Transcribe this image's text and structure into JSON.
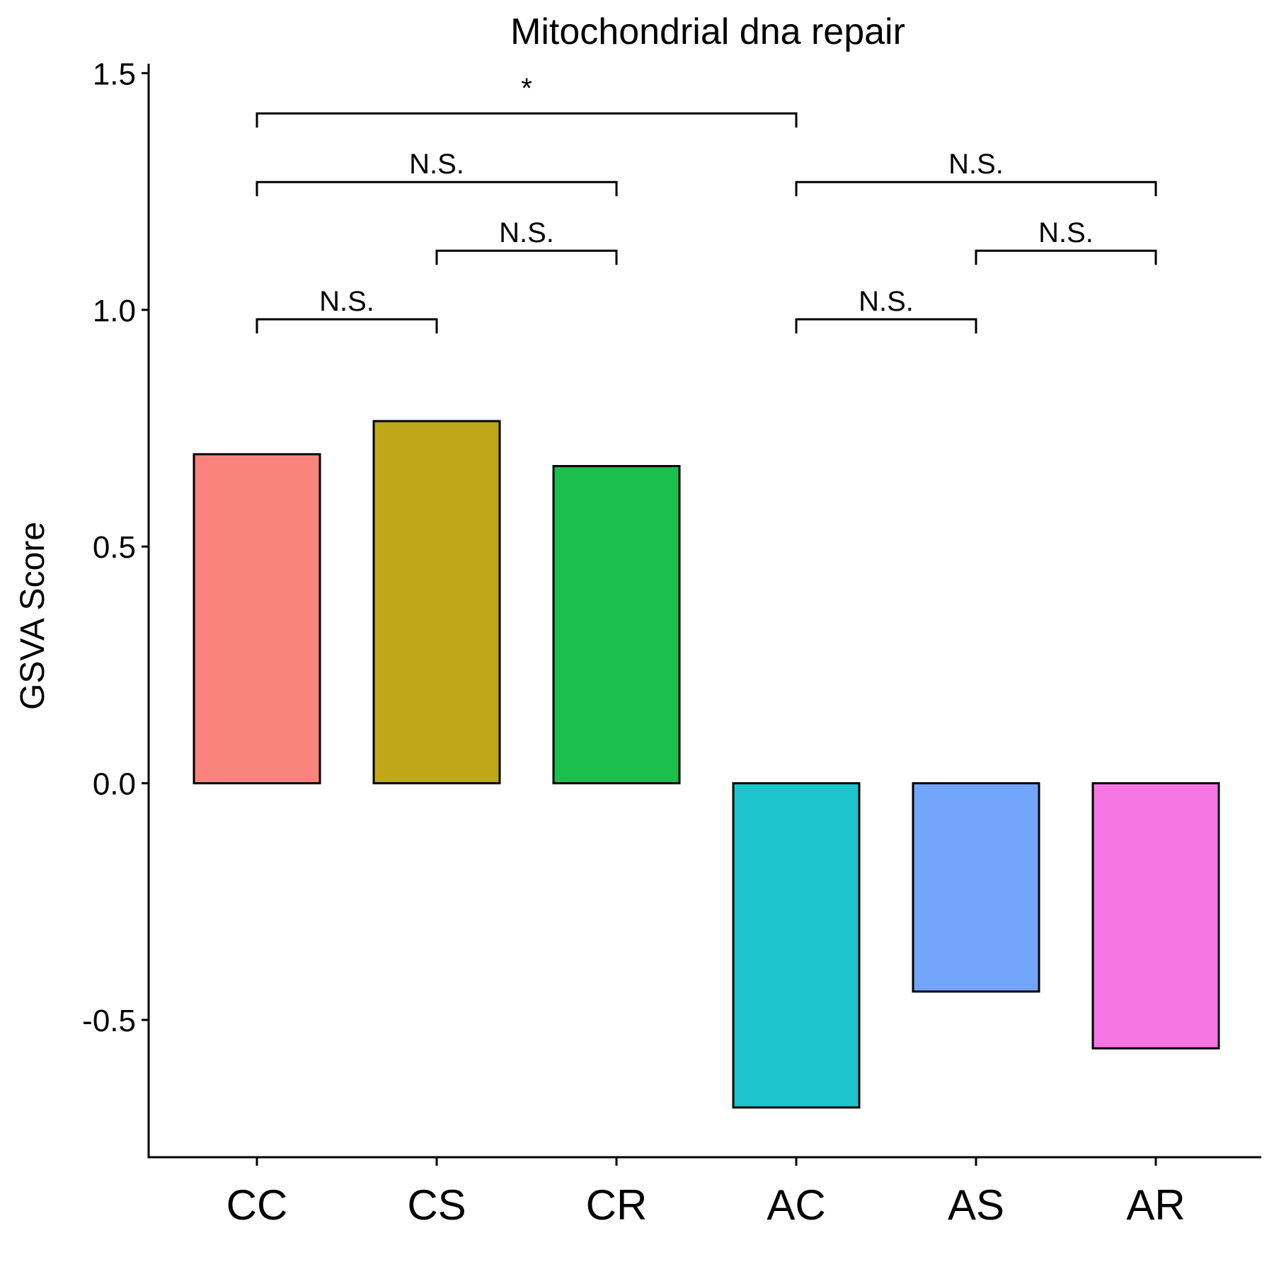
{
  "chart_data": {
    "type": "bar",
    "title": "Mitochondrial dna repair",
    "xlabel": "",
    "ylabel": "GSVA Score",
    "categories": [
      "CC",
      "CS",
      "CR",
      "AC",
      "AS",
      "AR"
    ],
    "values": [
      0.695,
      0.765,
      0.67,
      -0.685,
      -0.44,
      -0.56
    ],
    "colors": [
      "#F8847C",
      "#BFA719",
      "#1BBF4B",
      "#1DC4CB",
      "#72A6FC",
      "#F576E3"
    ],
    "ylim": [
      -0.79,
      1.52
    ],
    "yticks": [
      -0.5,
      0.0,
      0.5,
      1.0,
      1.5
    ],
    "ytick_labels": [
      "-0.5",
      "0.0",
      "0.5",
      "1.0",
      "1.5"
    ],
    "grid": false,
    "legend": "none",
    "comparisons": [
      {
        "from": "CC",
        "to": "CS",
        "y": 0.98,
        "label": "N.S."
      },
      {
        "from": "CS",
        "to": "CR",
        "y": 1.125,
        "label": "N.S."
      },
      {
        "from": "CC",
        "to": "CR",
        "y": 1.27,
        "label": "N.S."
      },
      {
        "from": "CC",
        "to": "AC",
        "y": 1.415,
        "label": "*"
      },
      {
        "from": "AC",
        "to": "AS",
        "y": 0.98,
        "label": "N.S."
      },
      {
        "from": "AS",
        "to": "AR",
        "y": 1.125,
        "label": "N.S."
      },
      {
        "from": "AC",
        "to": "AR",
        "y": 1.27,
        "label": "N.S."
      }
    ]
  }
}
